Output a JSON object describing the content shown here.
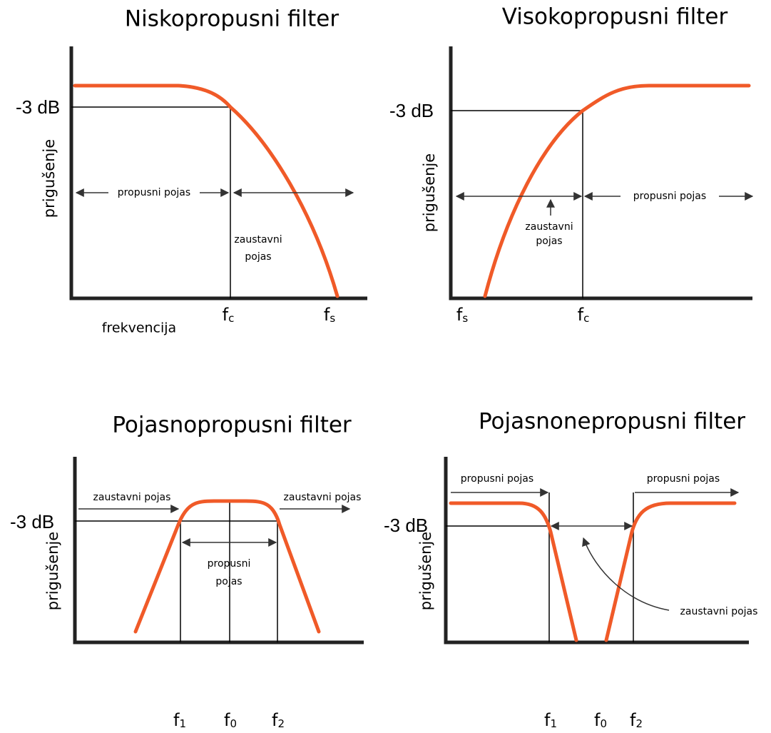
{
  "panels": [
    {
      "title": "Niskopropusni filter",
      "level": "-3 dB",
      "ylabel": "prigušenje",
      "pass": "propusni pojas",
      "stop": [
        "zaustavni",
        "pojas"
      ],
      "xlabel": "frekvencija",
      "markers": [
        {
          "symbol": "f",
          "sub": "c"
        },
        {
          "symbol": "f",
          "sub": "s"
        }
      ]
    },
    {
      "title": "Visokopropusni filter",
      "level": "-3 dB",
      "ylabel": "prigušenje",
      "pass": "propusni pojas",
      "stop": [
        "zaustavni",
        "pojas"
      ],
      "markers": [
        {
          "symbol": "f",
          "sub": "s"
        },
        {
          "symbol": "f",
          "sub": "c"
        }
      ]
    },
    {
      "title": "Pojasnopropusni filter",
      "level": "-3 dB",
      "ylabel": "prigušenje",
      "stop_left": "zaustavni pojas",
      "stop_right": "zaustavni pojas",
      "pass": [
        "propusni",
        "pojas"
      ],
      "markers": [
        {
          "symbol": "f",
          "sub": "1"
        },
        {
          "symbol": "f",
          "sub": "0"
        },
        {
          "symbol": "f",
          "sub": "2"
        }
      ]
    },
    {
      "title": "Pojasnonepropusni filter",
      "level": "-3 dB",
      "ylabel": "prigušenje",
      "pass_left": "propusni pojas",
      "pass_right": "propusni pojas",
      "stop": "zaustavni pojas",
      "markers": [
        {
          "symbol": "f",
          "sub": "1"
        },
        {
          "symbol": "f",
          "sub": "0"
        },
        {
          "symbol": "f",
          "sub": "2"
        }
      ]
    }
  ]
}
